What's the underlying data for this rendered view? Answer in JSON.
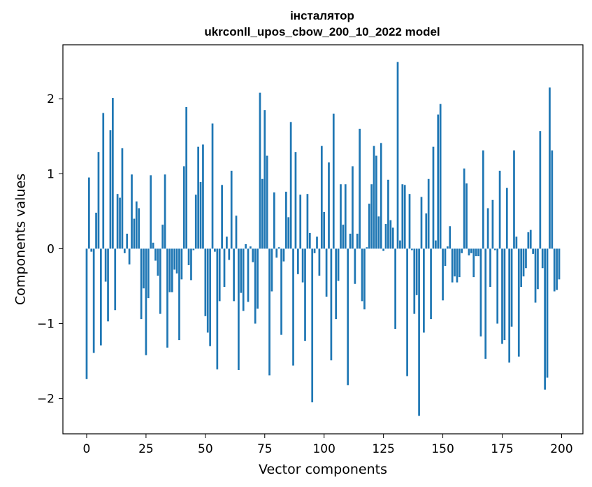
{
  "chart_data": {
    "type": "bar",
    "title": [
      "інсталятор",
      "ukrconll_upos_cbow_200_10_2022 model"
    ],
    "xlabel": "Vector components",
    "ylabel": "Components values",
    "xlim": [
      -10,
      209
    ],
    "ylim": [
      -2.47,
      2.72
    ],
    "xticks": [
      0,
      25,
      50,
      75,
      100,
      125,
      150,
      175,
      200
    ],
    "yticks": [
      -2,
      -1,
      0,
      1,
      2
    ],
    "ytick_labels": [
      "−2",
      "−1",
      "0",
      "1",
      "2"
    ],
    "grid": false,
    "bar_color": "#1f77b4",
    "x": [
      0,
      1,
      2,
      3,
      4,
      5,
      6,
      7,
      8,
      9,
      10,
      11,
      12,
      13,
      14,
      15,
      16,
      17,
      18,
      19,
      20,
      21,
      22,
      23,
      24,
      25,
      26,
      27,
      28,
      29,
      30,
      31,
      32,
      33,
      34,
      35,
      36,
      37,
      38,
      39,
      40,
      41,
      42,
      43,
      44,
      45,
      46,
      47,
      48,
      49,
      50,
      51,
      52,
      53,
      54,
      55,
      56,
      57,
      58,
      59,
      60,
      61,
      62,
      63,
      64,
      65,
      66,
      67,
      68,
      69,
      70,
      71,
      72,
      73,
      74,
      75,
      76,
      77,
      78,
      79,
      80,
      81,
      82,
      83,
      84,
      85,
      86,
      87,
      88,
      89,
      90,
      91,
      92,
      93,
      94,
      95,
      96,
      97,
      98,
      99,
      100,
      101,
      102,
      103,
      104,
      105,
      106,
      107,
      108,
      109,
      110,
      111,
      112,
      113,
      114,
      115,
      116,
      117,
      118,
      119,
      120,
      121,
      122,
      123,
      124,
      125,
      126,
      127,
      128,
      129,
      130,
      131,
      132,
      133,
      134,
      135,
      136,
      137,
      138,
      139,
      140,
      141,
      142,
      143,
      144,
      145,
      146,
      147,
      148,
      149,
      150,
      151,
      152,
      153,
      154,
      155,
      156,
      157,
      158,
      159,
      160,
      161,
      162,
      163,
      164,
      165,
      166,
      167,
      168,
      169,
      170,
      171,
      172,
      173,
      174,
      175,
      176,
      177,
      178,
      179,
      180,
      181,
      182,
      183,
      184,
      185,
      186,
      187,
      188,
      189,
      190,
      191,
      192,
      193,
      194,
      195,
      196,
      197,
      198,
      199
    ],
    "values": [
      -1.74,
      0.95,
      -0.04,
      -1.39,
      0.48,
      1.29,
      -1.29,
      1.81,
      -0.44,
      -0.97,
      1.58,
      2.01,
      -0.82,
      0.73,
      0.68,
      1.34,
      -0.06,
      0.2,
      -0.21,
      0.99,
      0.4,
      0.63,
      0.54,
      -0.94,
      -0.53,
      -1.42,
      -0.66,
      0.98,
      0.08,
      -0.16,
      -0.36,
      -0.87,
      0.32,
      0.99,
      -1.32,
      -0.58,
      -0.58,
      -0.28,
      -0.33,
      -1.22,
      -0.41,
      1.1,
      1.89,
      -0.22,
      -0.42,
      -0.02,
      0.72,
      1.36,
      0.89,
      1.39,
      -0.9,
      -1.12,
      -1.3,
      1.67,
      -0.04,
      -1.61,
      -0.7,
      0.85,
      -0.51,
      0.16,
      -0.15,
      1.04,
      -0.7,
      0.44,
      -1.62,
      -0.59,
      -0.83,
      0.06,
      -0.71,
      0.03,
      -0.18,
      -1.0,
      -0.8,
      2.08,
      0.93,
      1.85,
      1.24,
      -1.69,
      -0.57,
      0.75,
      -0.12,
      0.02,
      -1.15,
      -0.17,
      0.76,
      0.42,
      1.69,
      -1.56,
      1.29,
      -0.34,
      0.72,
      -0.45,
      -1.23,
      0.73,
      0.21,
      -2.05,
      -0.06,
      0.16,
      -0.36,
      1.37,
      0.49,
      -0.64,
      1.15,
      -1.49,
      1.8,
      -0.94,
      -0.43,
      0.86,
      0.32,
      0.86,
      -1.82,
      0.2,
      1.1,
      -0.47,
      0.2,
      1.6,
      -0.7,
      -0.81,
      0.02,
      0.6,
      0.86,
      1.37,
      1.24,
      0.43,
      1.41,
      -0.03,
      0.33,
      0.92,
      0.38,
      0.28,
      -1.07,
      2.49,
      0.11,
      0.86,
      0.85,
      -1.7,
      0.73,
      -0.02,
      -0.87,
      -0.62,
      -2.23,
      0.69,
      -1.12,
      0.47,
      0.93,
      -0.94,
      1.36,
      0.11,
      1.79,
      1.93,
      -0.69,
      -0.23,
      0.03,
      0.3,
      -0.45,
      -0.37,
      -0.45,
      -0.38,
      -0.06,
      1.07,
      0.87,
      -0.09,
      -0.06,
      -0.38,
      -0.1,
      -0.1,
      -1.17,
      1.31,
      -1.47,
      0.54,
      -0.51,
      0.65,
      -0.02,
      -1.0,
      1.04,
      -1.27,
      -1.22,
      0.81,
      -1.52,
      -1.04,
      1.31,
      0.16,
      -1.44,
      -0.51,
      -0.37,
      -0.26,
      0.22,
      0.25,
      -0.07,
      -0.72,
      -0.54,
      1.57,
      -0.26,
      -1.88,
      -1.72,
      2.15,
      1.31,
      -0.57,
      -0.55,
      -0.41
    ]
  }
}
